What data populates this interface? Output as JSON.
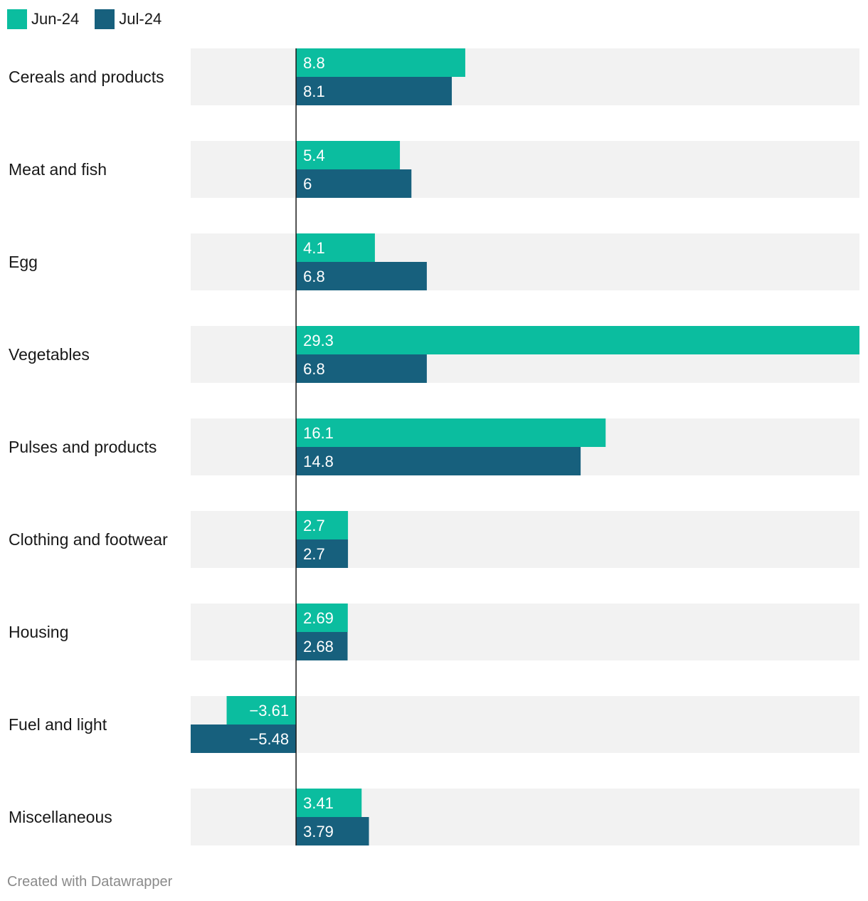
{
  "colors": {
    "jun": "#0bbd9f",
    "jul": "#17607d",
    "row_bg": "#f2f2f2",
    "axis": "#1a1a1a"
  },
  "footer": "Created with Datawrapper",
  "chart_data": {
    "type": "bar",
    "orientation": "horizontal",
    "categories": [
      "Cereals and products",
      "Meat and fish",
      "Egg",
      "Vegetables",
      "Pulses and products",
      "Clothing and footwear",
      "Housing",
      "Fuel and light",
      "Miscellaneous"
    ],
    "series": [
      {
        "name": "Jun-24",
        "values": [
          8.8,
          5.4,
          4.1,
          29.3,
          16.1,
          2.7,
          2.69,
          -3.61,
          3.41
        ],
        "labels": [
          "8.8",
          "5.4",
          "4.1",
          "29.3",
          "16.1",
          "2.7",
          "2.69",
          "−3.61",
          "3.41"
        ]
      },
      {
        "name": "Jul-24",
        "values": [
          8.1,
          6,
          6.8,
          6.8,
          14.8,
          2.7,
          2.68,
          -5.48,
          3.79
        ],
        "labels": [
          "8.1",
          "6",
          "6.8",
          "6.8",
          "14.8",
          "2.7",
          "2.68",
          "−5.48",
          "3.79"
        ]
      }
    ],
    "xlim": [
      -5.48,
      29.3
    ],
    "legend": "top-left",
    "grid": false
  }
}
